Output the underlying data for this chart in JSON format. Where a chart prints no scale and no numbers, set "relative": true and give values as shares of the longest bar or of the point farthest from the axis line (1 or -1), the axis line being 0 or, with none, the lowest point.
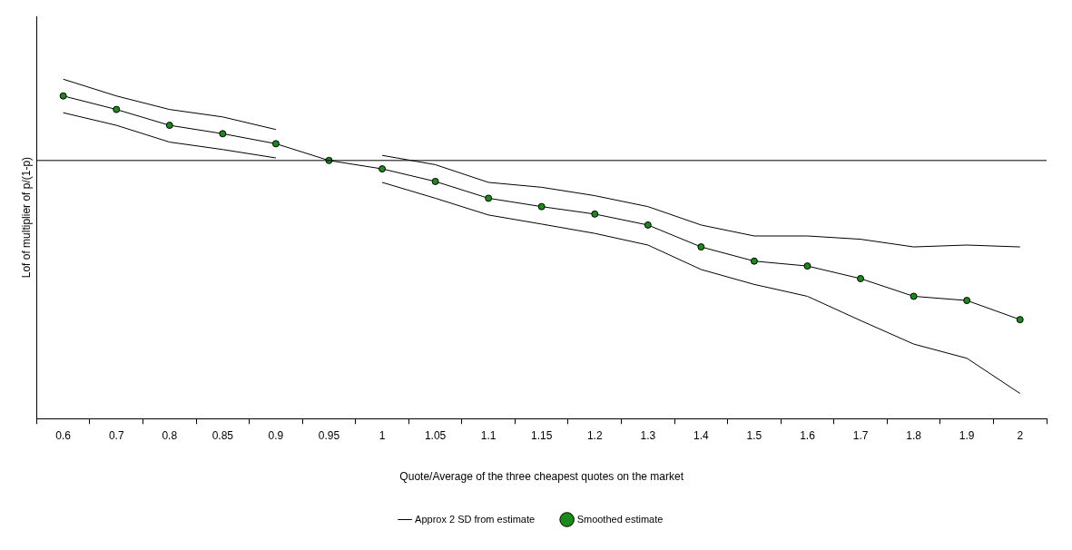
{
  "chart_data": {
    "type": "line",
    "relative": true,
    "xlabel": "Quote/Average of the three cheapest quotes on the market",
    "ylabel": "Lof of multiplier of p/(1-p)",
    "categories": [
      "0.6",
      "0.7",
      "0.8",
      "0.85",
      "0.9",
      "0.95",
      "1",
      "1.05",
      "1.1",
      "1.15",
      "1.2",
      "1.3",
      "1.4",
      "1.5",
      "1.6",
      "1.7",
      "1.8",
      "1.9",
      "2"
    ],
    "legend": "bottom",
    "grid": false,
    "line_style": "solid",
    "series": [
      {
        "name": "Approx 2 SD from estimate",
        "color": "#000000",
        "marker": "none",
        "values": [
          0.349,
          0.277,
          0.219,
          0.187,
          0.133,
          null,
          0.022,
          -0.018,
          -0.094,
          -0.115,
          -0.151,
          -0.198,
          -0.277,
          -0.324,
          -0.324,
          -0.338,
          -0.371,
          -0.363,
          -0.371
        ]
      },
      {
        "color": "#000000",
        "marker": "none",
        "values": [
          0.205,
          0.151,
          0.079,
          0.047,
          0.011,
          null,
          -0.094,
          -0.162,
          -0.234,
          -0.273,
          -0.313,
          -0.363,
          -0.468,
          -0.532,
          -0.583,
          -0.687,
          -0.788,
          -0.849,
          -1
        ]
      },
      {
        "name": "Smoothed estimate",
        "color": "#1a8a1a",
        "marker": "circle",
        "values": [
          0.277,
          0.219,
          0.151,
          0.115,
          0.072,
          0,
          -0.036,
          -0.09,
          -0.162,
          -0.198,
          -0.23,
          -0.277,
          -0.371,
          -0.432,
          -0.453,
          -0.507,
          -0.583,
          -0.601,
          -0.683
        ]
      }
    ]
  }
}
